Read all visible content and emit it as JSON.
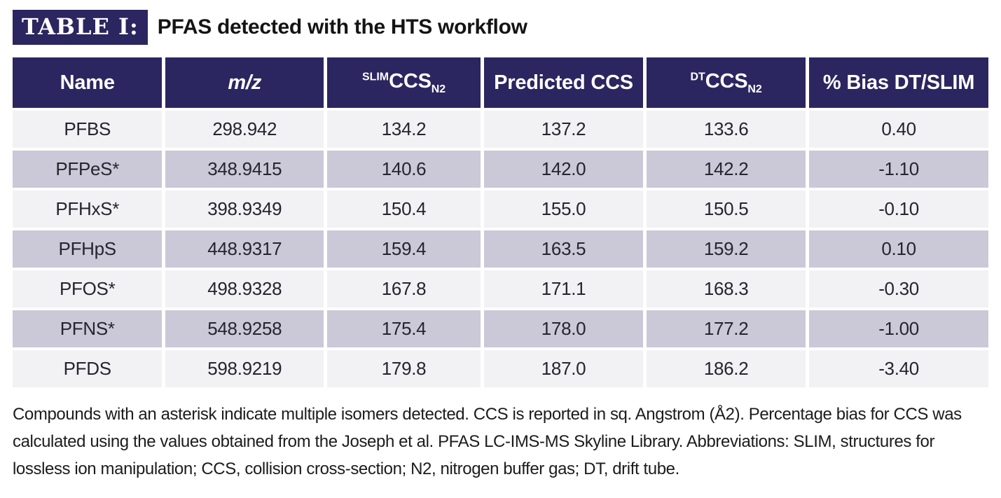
{
  "header": {
    "badge": "TABLE I:",
    "title": "PFAS detected with the HTS workflow"
  },
  "table": {
    "columns": [
      {
        "label": "Name"
      },
      {
        "label": "m/z"
      },
      {
        "sup": "SLIM",
        "label": "CCS",
        "sub": "N2"
      },
      {
        "label": "Predicted CCS"
      },
      {
        "sup": "DT",
        "label": "CCS",
        "sub": "N2"
      },
      {
        "label": "% Bias DT/SLIM"
      }
    ],
    "rows": [
      [
        "PFBS",
        "298.942",
        "134.2",
        "137.2",
        "133.6",
        "0.40"
      ],
      [
        "PFPeS*",
        "348.9415",
        "140.6",
        "142.0",
        "142.2",
        "-1.10"
      ],
      [
        "PFHxS*",
        "398.9349",
        "150.4",
        "155.0",
        "150.5",
        "-0.10"
      ],
      [
        "PFHpS",
        "448.9317",
        "159.4",
        "163.5",
        "159.2",
        "0.10"
      ],
      [
        "PFOS*",
        "498.9328",
        "167.8",
        "171.1",
        "168.3",
        "-0.30"
      ],
      [
        "PFNS*",
        "548.9258",
        "175.4",
        "178.0",
        "177.2",
        "-1.00"
      ],
      [
        "PFDS",
        "598.9219",
        "179.8",
        "187.0",
        "186.2",
        "-3.40"
      ]
    ]
  },
  "footnote": {
    "text": "Compounds with an asterisk indicate multiple isomers detected. CCS is reported in sq. Angstrom (Å2). Percentage bias for CCS was calculated using the values obtained from the Joseph et al. PFAS LC-IMS-MS Skyline Library. Abbreviations: SLIM, structures for lossless ion manipulation; CCS, collision cross-section; N2, nitrogen buffer gas; DT, drift tube."
  },
  "colors": {
    "header_bg": "#2b2660",
    "badge_bg": "#2b2660",
    "row_light": "#f2f1f4",
    "row_alt": "#cbc8d8",
    "header_text": "#ffffff",
    "body_text": "#26242e"
  },
  "chart_data": {
    "type": "table",
    "title": "TABLE I: PFAS detected with the HTS workflow",
    "columns": [
      "Name",
      "m/z",
      "SLIM CCS N2",
      "Predicted CCS",
      "DT CCS N2",
      "% Bias DT/SLIM"
    ],
    "rows": [
      [
        "PFBS",
        298.942,
        134.2,
        137.2,
        133.6,
        0.4
      ],
      [
        "PFPeS*",
        348.9415,
        140.6,
        142.0,
        142.2,
        -1.1
      ],
      [
        "PFHxS*",
        398.9349,
        150.4,
        155.0,
        150.5,
        -0.1
      ],
      [
        "PFHpS",
        448.9317,
        159.4,
        163.5,
        159.2,
        0.1
      ],
      [
        "PFOS*",
        498.9328,
        167.8,
        171.1,
        168.3,
        -0.3
      ],
      [
        "PFNS*",
        548.9258,
        175.4,
        178.0,
        177.2,
        -1.0
      ],
      [
        "PFDS",
        598.9219,
        179.8,
        187.0,
        186.2,
        -3.4
      ]
    ]
  }
}
